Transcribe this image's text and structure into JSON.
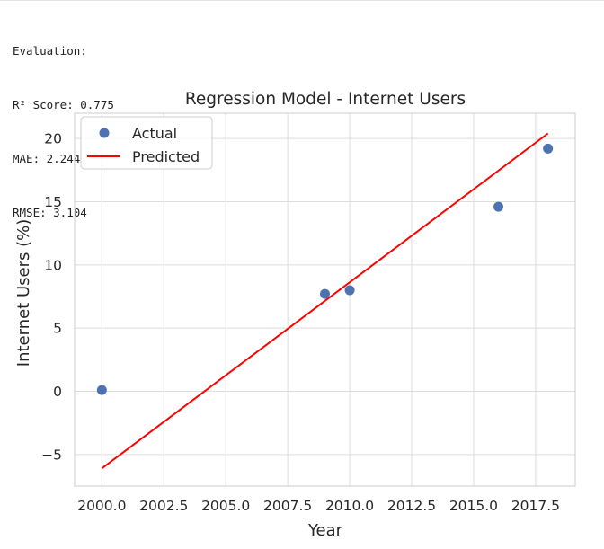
{
  "output": {
    "heading": "Evaluation:",
    "r2": "R² Score: 0.775",
    "mae": "MAE: 2.244",
    "rmse": "RMSE: 3.104"
  },
  "chart_data": {
    "type": "scatter",
    "title": "Regression Model - Internet Users",
    "xlabel": "Year",
    "ylabel": "Internet Users (%)",
    "xlim": [
      1998.9,
      2019.1
    ],
    "ylim": [
      -7.5,
      22.0
    ],
    "xticks": [
      2000.0,
      2002.5,
      2005.0,
      2007.5,
      2010.0,
      2012.5,
      2015.0,
      2017.5
    ],
    "xtick_labels": [
      "2000.0",
      "2002.5",
      "2005.0",
      "2007.5",
      "2010.0",
      "2012.5",
      "2015.0",
      "2017.5"
    ],
    "yticks": [
      -5,
      0,
      5,
      10,
      15,
      20
    ],
    "ytick_labels": [
      "−5",
      "0",
      "5",
      "10",
      "15",
      "20"
    ],
    "grid": true,
    "legend_position": "top-left",
    "series": [
      {
        "name": "Actual",
        "kind": "scatter",
        "color": "#4c72b0",
        "x": [
          2000,
          2009,
          2010,
          2016,
          2018
        ],
        "y": [
          0.1,
          7.7,
          8.0,
          14.6,
          19.2
        ]
      },
      {
        "name": "Predicted",
        "kind": "line",
        "color": "#ff0000",
        "x": [
          2000,
          2009,
          2010,
          2016,
          2018
        ],
        "y": [
          -6.1,
          7.2,
          8.6,
          17.4,
          20.4
        ]
      }
    ]
  }
}
